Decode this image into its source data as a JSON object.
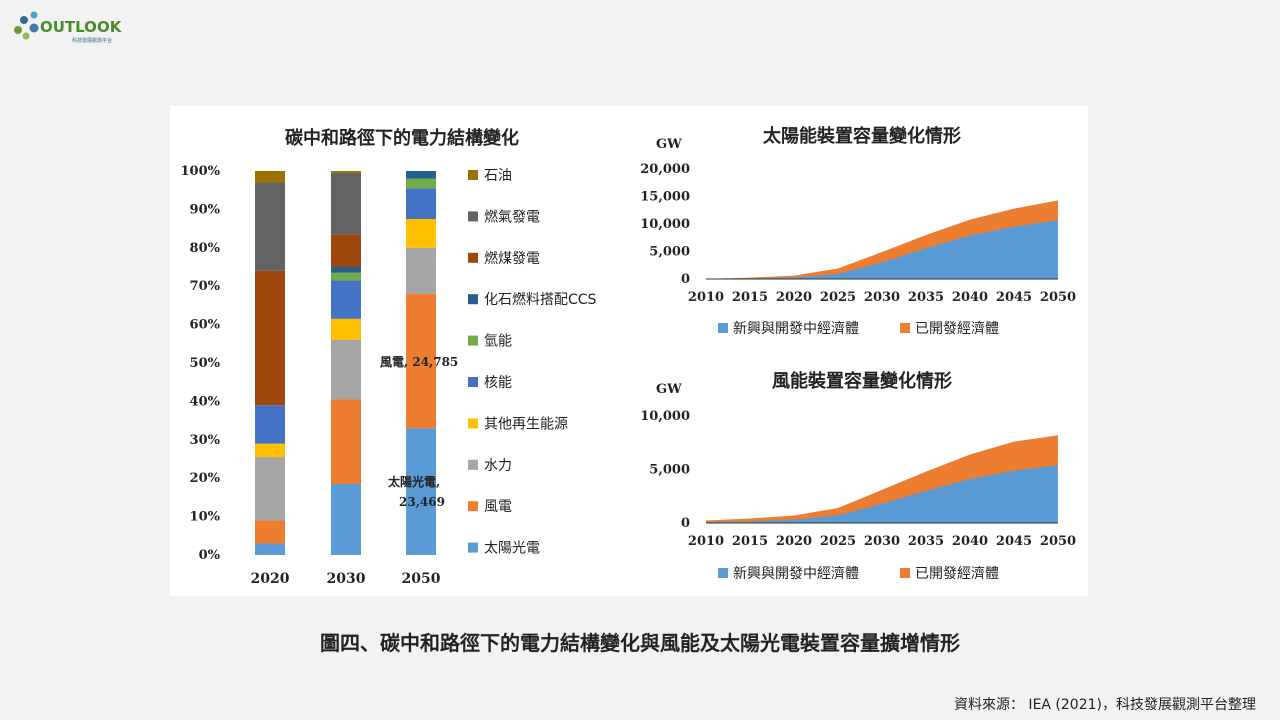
{
  "logo": {
    "text": "OUTLOOK",
    "subtext": "科技發展觀測平台"
  },
  "caption": "圖四、碳中和路徑下的電力結構變化與風能及太陽光電裝置容量擴增情形",
  "source": "資料來源： IEA (2021)，科技發展觀測平台整理",
  "chart_data": [
    {
      "type": "bar",
      "stacked": true,
      "title": "碳中和路徑下的電力結構變化",
      "categories": [
        "2020",
        "2030",
        "2050"
      ],
      "yticks": [
        "0%",
        "10%",
        "20%",
        "30%",
        "40%",
        "50%",
        "60%",
        "70%",
        "80%",
        "90%",
        "100%"
      ],
      "ylim": [
        0,
        100
      ],
      "series": [
        {
          "name": "太陽光電",
          "color": "#5b9bd5",
          "values": [
            3,
            18.5,
            33
          ]
        },
        {
          "name": "風電",
          "color": "#ed7d31",
          "values": [
            6,
            22,
            35
          ]
        },
        {
          "name": "水力",
          "color": "#a5a5a5",
          "values": [
            16.5,
            15.5,
            12
          ]
        },
        {
          "name": "其他再生能源",
          "color": "#ffc000",
          "values": [
            3.5,
            5.5,
            7.5
          ]
        },
        {
          "name": "核能",
          "color": "#4472c4",
          "values": [
            10,
            10,
            8
          ]
        },
        {
          "name": "氫能",
          "color": "#70ad47",
          "values": [
            0,
            2,
            2.5
          ]
        },
        {
          "name": "化石燃料搭配CCS",
          "color": "#255e91",
          "values": [
            0,
            1.5,
            2
          ]
        },
        {
          "name": "燃煤發電",
          "color": "#9e480e",
          "values": [
            35,
            8.5,
            0
          ]
        },
        {
          "name": "燃氣發電",
          "color": "#636363",
          "values": [
            23,
            16,
            0
          ]
        },
        {
          "name": "石油",
          "color": "#997300",
          "values": [
            3,
            0.5,
            0
          ]
        }
      ],
      "annotations": [
        {
          "line1": "風電, 24,785",
          "line2": ""
        },
        {
          "line1": "太陽光電,",
          "line2": "23,469"
        }
      ]
    },
    {
      "type": "area",
      "stacked": true,
      "title": "太陽能裝置容量變化情形",
      "ylabel": "GW",
      "x": [
        2010,
        2015,
        2020,
        2025,
        2030,
        2035,
        2040,
        2045,
        2050
      ],
      "ylim": [
        0,
        20000
      ],
      "yticks": [
        "0",
        "5,000",
        "10,000",
        "15,000",
        "20,000"
      ],
      "series": [
        {
          "name": "新興與開發中經濟體",
          "color": "#5b9bd5",
          "values": [
            10,
            120,
            300,
            900,
            3000,
            5600,
            7900,
            9500,
            10700
          ]
        },
        {
          "name": "已開發經濟體",
          "color": "#ed7d31",
          "values": [
            20,
            120,
            320,
            1000,
            1900,
            2400,
            2900,
            3300,
            3600
          ]
        }
      ]
    },
    {
      "type": "area",
      "stacked": true,
      "title": "風能裝置容量變化情形",
      "ylabel": "GW",
      "x": [
        2010,
        2015,
        2020,
        2025,
        2030,
        2035,
        2040,
        2045,
        2050
      ],
      "ylim": [
        0,
        10000
      ],
      "yticks": [
        "0",
        "5,000",
        "10,000"
      ],
      "series": [
        {
          "name": "新興與開發中經濟體",
          "color": "#5b9bd5",
          "values": [
            80,
            150,
            320,
            700,
            1800,
            3000,
            4100,
            4900,
            5400
          ]
        },
        {
          "name": "已開發經濟體",
          "color": "#ed7d31",
          "values": [
            150,
            270,
            380,
            700,
            1300,
            1800,
            2300,
            2700,
            2800
          ]
        }
      ]
    }
  ]
}
